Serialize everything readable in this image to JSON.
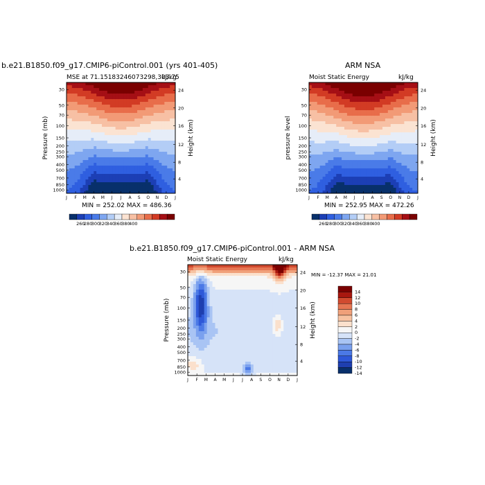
{
  "chart_data": [
    {
      "type": "heatmap",
      "title": "b.e21.B1850.f09_g17.CMIP6-piControl.001 (yrs 401-405)",
      "left_label": "MSE at 71.15183246073298,303.75",
      "right_label": "kJ/kg",
      "xlabel": "",
      "ylabel": "Pressure (mb)",
      "ylabel_right": "Height (km)",
      "x_ticks": [
        "J",
        "F",
        "M",
        "A",
        "M",
        "J",
        "J",
        "A",
        "S",
        "O",
        "N",
        "D",
        "J"
      ],
      "y_ticks": [
        "30",
        "50",
        "70",
        "100",
        "150",
        "200",
        "250",
        "300",
        "400",
        "500",
        "700",
        "850",
        "1000"
      ],
      "y_ticks_right": [
        "24",
        "20",
        "16",
        "12",
        "8",
        "4"
      ],
      "stats": "MIN = 252.02   MAX = 486.36",
      "colorbar_labels": [
        "260",
        "280",
        "300",
        "320",
        "340",
        "360",
        "380",
        "400"
      ]
    },
    {
      "type": "heatmap",
      "title": "ARM NSA",
      "left_label": "Moist Static Energy",
      "right_label": "kJ/kg",
      "xlabel": "",
      "ylabel": "pressure level",
      "ylabel_right": "Height (km)",
      "x_ticks": [
        "J",
        "F",
        "M",
        "A",
        "M",
        "J",
        "J",
        "A",
        "S",
        "O",
        "N",
        "D",
        "J"
      ],
      "y_ticks": [
        "30",
        "50",
        "70",
        "100",
        "150",
        "200",
        "250",
        "300",
        "400",
        "500",
        "700",
        "850",
        "1000"
      ],
      "y_ticks_right": [
        "24",
        "20",
        "16",
        "12",
        "8",
        "4"
      ],
      "stats": "MIN = 252.95   MAX = 472.26",
      "colorbar_labels": [
        "260",
        "280",
        "300",
        "320",
        "340",
        "360",
        "380",
        "400"
      ]
    },
    {
      "type": "heatmap",
      "title": "b.e21.B1850.f09_g17.CMIP6-piControl.001  - ARM NSA",
      "left_label": "Moist Static Energy",
      "right_label": "kJ/kg",
      "xlabel": "",
      "ylabel": "Pressure (mb)",
      "ylabel_right": "Height (km)",
      "x_ticks": [
        "J",
        "F",
        "M",
        "A",
        "M",
        "J",
        "J",
        "A",
        "S",
        "O",
        "N",
        "D",
        "J"
      ],
      "y_ticks": [
        "30",
        "50",
        "70",
        "100",
        "150",
        "200",
        "250",
        "300",
        "400",
        "500",
        "700",
        "850",
        "1000"
      ],
      "y_ticks_right": [
        "24",
        "20",
        "16",
        "12",
        "8",
        "4"
      ],
      "stats": "MIN = -12.37  MAX =   21.01",
      "colorbar_labels": [
        "14",
        "12",
        "10",
        "8",
        "6",
        "4",
        "2",
        "0",
        "-2",
        "-4",
        "-6",
        "-8",
        "-10",
        "-12",
        "-14"
      ]
    }
  ],
  "colors": {
    "seq": [
      "#08306b",
      "#1c3fb5",
      "#2f5fe0",
      "#4a7be8",
      "#7ea6f0",
      "#b3cdf6",
      "#e6edf8",
      "#fbe3d2",
      "#f7c0a4",
      "#f29a76",
      "#e86d4a",
      "#d23b24",
      "#a50f15",
      "#7a0000"
    ],
    "div": [
      "#08306b",
      "#1e3fb0",
      "#2e58d8",
      "#4b79e6",
      "#7aa0ee",
      "#a9c4f4",
      "#d6e3f8",
      "#f6f6f6",
      "#fbe0cc",
      "#f7c2a1",
      "#f0a07a",
      "#e67653",
      "#d14a2f",
      "#a8170f",
      "#7a0000"
    ]
  }
}
